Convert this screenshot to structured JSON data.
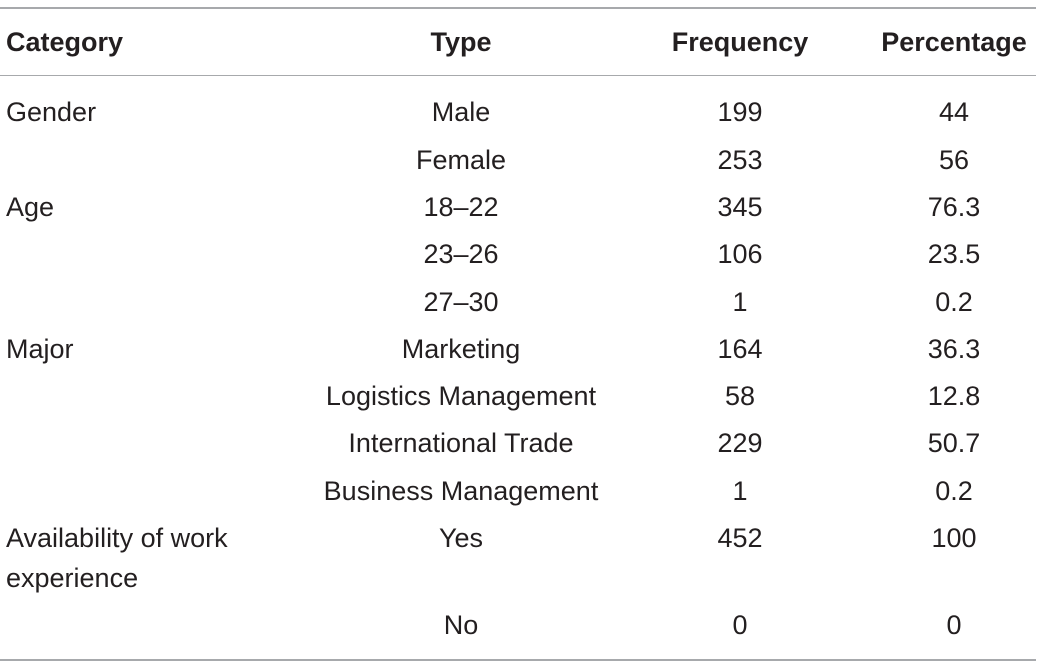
{
  "table": {
    "headers": {
      "category": "Category",
      "type": "Type",
      "frequency": "Frequency",
      "percentage": "Percentage"
    },
    "rows": [
      {
        "category": "Gender",
        "type": "Male",
        "frequency": "199",
        "percentage": "44"
      },
      {
        "category": "",
        "type": "Female",
        "frequency": "253",
        "percentage": "56"
      },
      {
        "category": "Age",
        "type": "18–22",
        "frequency": "345",
        "percentage": "76.3"
      },
      {
        "category": "",
        "type": "23–26",
        "frequency": "106",
        "percentage": "23.5"
      },
      {
        "category": "",
        "type": "27–30",
        "frequency": "1",
        "percentage": "0.2"
      },
      {
        "category": "Major",
        "type": "Marketing",
        "frequency": "164",
        "percentage": "36.3"
      },
      {
        "category": "",
        "type": "Logistics Management",
        "frequency": "58",
        "percentage": "12.8"
      },
      {
        "category": "",
        "type": "International Trade",
        "frequency": "229",
        "percentage": "50.7"
      },
      {
        "category": "",
        "type": "Business Management",
        "frequency": "1",
        "percentage": "0.2"
      },
      {
        "category": "Availability of work experience",
        "type": "Yes",
        "frequency": "452",
        "percentage": "100"
      },
      {
        "category": "",
        "type": "No",
        "frequency": "0",
        "percentage": "0"
      }
    ]
  }
}
